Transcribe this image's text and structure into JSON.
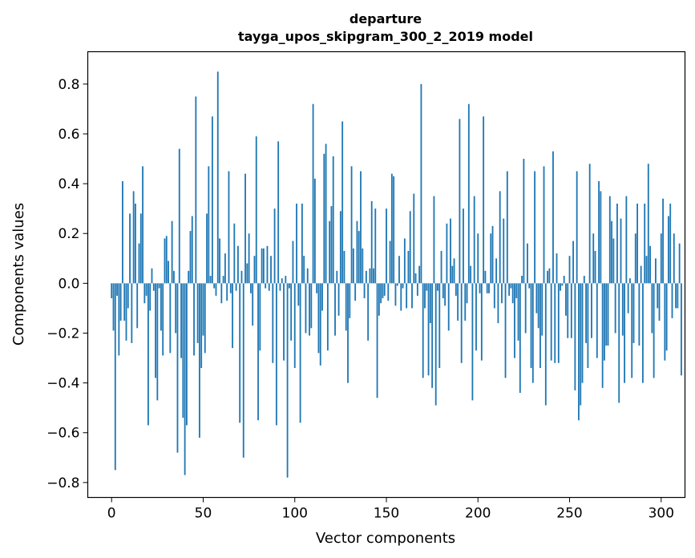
{
  "chart_data": {
    "type": "bar",
    "title": "departure",
    "subtitle": "tayga_upos_skipgram_300_2_2019 model",
    "xlabel": "Vector components",
    "ylabel": "Components values",
    "xlim": [
      -13,
      313
    ],
    "ylim": [
      -0.86,
      0.93
    ],
    "xticks": [
      0,
      50,
      100,
      150,
      200,
      250,
      300
    ],
    "yticks": [
      -0.8,
      -0.6,
      -0.4,
      -0.2,
      0.0,
      0.2,
      0.4,
      0.6,
      0.8
    ],
    "xtick_labels": [
      "0",
      "50",
      "100",
      "150",
      "200",
      "250",
      "300"
    ],
    "ytick_labels": [
      "−0.8",
      "−0.6",
      "−0.4",
      "−0.2",
      "0.0",
      "0.2",
      "0.4",
      "0.6",
      "0.8"
    ],
    "bar_color": "#1f77b4",
    "values": [
      -0.06,
      -0.19,
      -0.75,
      -0.05,
      -0.29,
      -0.15,
      0.41,
      -0.15,
      -0.23,
      -0.1,
      0.28,
      -0.24,
      0.37,
      0.32,
      -0.18,
      0.16,
      0.28,
      0.47,
      -0.08,
      -0.05,
      -0.57,
      -0.11,
      0.06,
      -0.03,
      -0.38,
      -0.47,
      -0.02,
      -0.19,
      -0.29,
      0.18,
      0.19,
      0.09,
      -0.28,
      0.25,
      0.05,
      -0.2,
      -0.68,
      0.54,
      -0.3,
      -0.54,
      -0.77,
      -0.57,
      0.05,
      0.21,
      0.27,
      -0.29,
      0.75,
      -0.24,
      -0.62,
      -0.34,
      -0.21,
      -0.28,
      0.28,
      0.47,
      0.03,
      0.67,
      -0.02,
      -0.05,
      0.85,
      0.18,
      -0.08,
      0.03,
      0.12,
      -0.07,
      0.45,
      -0.04,
      -0.26,
      0.24,
      -0.03,
      0.15,
      -0.56,
      0.05,
      -0.7,
      0.44,
      0.08,
      0.2,
      -0.04,
      -0.17,
      0.11,
      0.59,
      -0.55,
      -0.27,
      0.14,
      0.14,
      -0.02,
      0.15,
      -0.03,
      0.11,
      -0.32,
      0.3,
      -0.57,
      0.57,
      -0.03,
      0.02,
      -0.31,
      0.03,
      -0.78,
      -0.02,
      -0.23,
      0.17,
      -0.34,
      0.32,
      -0.09,
      -0.56,
      0.32,
      0.11,
      -0.2,
      0.06,
      -0.21,
      -0.18,
      0.72,
      0.42,
      -0.04,
      -0.28,
      -0.33,
      -0.11,
      0.52,
      0.56,
      -0.27,
      0.25,
      0.31,
      0.51,
      -0.21,
      0.05,
      -0.13,
      0.29,
      0.65,
      0.13,
      -0.19,
      -0.4,
      -0.14,
      0.47,
      0.14,
      -0.07,
      0.25,
      0.21,
      0.45,
      0.14,
      -0.06,
      0.05,
      -0.23,
      0.06,
      0.33,
      0.06,
      0.3,
      -0.46,
      -0.13,
      -0.08,
      -0.06,
      -0.05,
      0.3,
      -0.07,
      0.17,
      0.44,
      0.43,
      -0.09,
      -0.01,
      0.11,
      -0.11,
      -0.02,
      0.18,
      -0.1,
      0.13,
      0.29,
      -0.1,
      0.36,
      0.04,
      -0.05,
      0.07,
      0.8,
      -0.38,
      -0.1,
      -0.03,
      -0.37,
      -0.16,
      -0.42,
      0.35,
      -0.49,
      -0.03,
      -0.34,
      0.13,
      -0.06,
      -0.09,
      0.24,
      -0.19,
      0.26,
      0.07,
      0.1,
      -0.05,
      -0.15,
      0.66,
      -0.32,
      0.3,
      -0.15,
      -0.08,
      0.72,
      0.07,
      -0.47,
      0.35,
      -0.27,
      0.2,
      -0.04,
      -0.31,
      0.67,
      0.05,
      -0.04,
      -0.04,
      0.2,
      0.23,
      -0.1,
      0.1,
      -0.16,
      0.37,
      -0.08,
      0.26,
      -0.38,
      0.45,
      -0.05,
      -0.02,
      -0.08,
      -0.3,
      -0.06,
      -0.23,
      -0.44,
      0.03,
      0.5,
      -0.2,
      0.16,
      -0.02,
      -0.34,
      -0.4,
      0.45,
      -0.12,
      -0.18,
      -0.34,
      -0.21,
      0.47,
      -0.49,
      0.05,
      0.06,
      -0.31,
      0.53,
      -0.32,
      0.12,
      -0.32,
      -0.03,
      -0.01,
      0.03,
      -0.13,
      -0.22,
      0.11,
      -0.22,
      0.17,
      -0.43,
      0.45,
      -0.55,
      -0.49,
      -0.4,
      0.03,
      -0.24,
      -0.34,
      0.48,
      -0.22,
      0.2,
      0.13,
      -0.3,
      0.41,
      0.37,
      -0.42,
      -0.31,
      -0.25,
      -0.25,
      0.35,
      0.25,
      0.18,
      -0.2,
      0.32,
      -0.48,
      0.26,
      -0.21,
      -0.4,
      0.35,
      -0.12,
      0.02,
      -0.38,
      -0.24,
      0.2,
      0.32,
      -0.25,
      0.07,
      -0.4,
      0.32,
      0.11,
      0.48,
      0.15,
      -0.2,
      -0.38,
      0.1,
      -0.1,
      -0.15,
      0.2,
      0.34,
      -0.31,
      -0.27,
      0.27,
      0.32,
      -0.14,
      0.2,
      -0.1,
      -0.1,
      0.16,
      -0.37
    ]
  }
}
